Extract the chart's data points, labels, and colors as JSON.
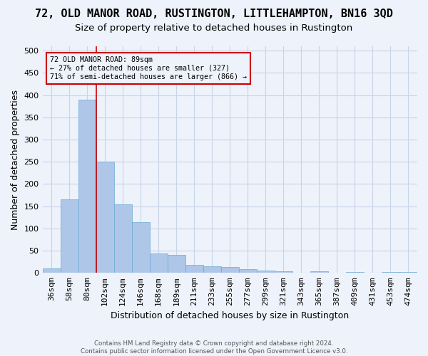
{
  "title": "72, OLD MANOR ROAD, RUSTINGTON, LITTLEHAMPTON, BN16 3QD",
  "subtitle": "Size of property relative to detached houses in Rustington",
  "xlabel": "Distribution of detached houses by size in Rustington",
  "ylabel": "Number of detached properties",
  "categories": [
    "36sqm",
    "58sqm",
    "80sqm",
    "102sqm",
    "124sqm",
    "146sqm",
    "168sqm",
    "189sqm",
    "211sqm",
    "233sqm",
    "255sqm",
    "277sqm",
    "299sqm",
    "321sqm",
    "343sqm",
    "365sqm",
    "387sqm",
    "409sqm",
    "431sqm",
    "453sqm",
    "474sqm"
  ],
  "values": [
    10,
    165,
    390,
    250,
    155,
    115,
    43,
    40,
    18,
    15,
    13,
    8,
    6,
    3,
    0,
    3,
    0,
    2,
    0,
    2,
    2
  ],
  "bar_color": "#aec6e8",
  "bar_edge_color": "#6aaad4",
  "grid_color": "#c8d4e8",
  "background_color": "#eef2fa",
  "vline_color": "#cc0000",
  "vline_x": 2.5,
  "annotation_text": "72 OLD MANOR ROAD: 89sqm\n← 27% of detached houses are smaller (327)\n71% of semi-detached houses are larger (866) →",
  "ylim": [
    0,
    510
  ],
  "yticks": [
    0,
    50,
    100,
    150,
    200,
    250,
    300,
    350,
    400,
    450,
    500
  ],
  "footnote": "Contains HM Land Registry data © Crown copyright and database right 2024.\nContains public sector information licensed under the Open Government Licence v3.0.",
  "title_fontsize": 11,
  "subtitle_fontsize": 9.5,
  "xlabel_fontsize": 9,
  "ylabel_fontsize": 9
}
